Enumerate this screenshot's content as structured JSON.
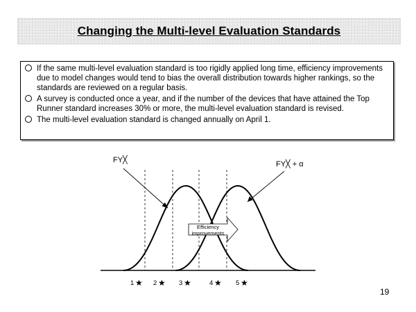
{
  "slide": {
    "title": "Changing the Multi-level Evaluation Standards",
    "bullets": [
      "If the same multi-level evaluation standard is too rigidly applied long time, efficiency improvements due to model changes would tend to bias the overall distribution towards higher rankings, so the standards are reviewed on a regular basis.",
      "A survey is conducted once a year, and if the number of the devices that have attained the Top Runner standard increases 30% or more, the multi-level evaluation standard is revised.",
      "The multi-level evaluation standard is changed annually on April 1."
    ],
    "page_number": "19"
  },
  "diagram": {
    "curve_label_left": "FY╳",
    "curve_label_right": "FY╳ + α",
    "arrow_label_line1": "Efficiency",
    "arrow_label_line2": "improvements",
    "ranks": [
      "1",
      "2",
      "3",
      "4",
      "5"
    ],
    "rank_icon": "star-icon",
    "colors": {
      "line": "#000000",
      "arrow_fill": "#ffffff"
    }
  }
}
